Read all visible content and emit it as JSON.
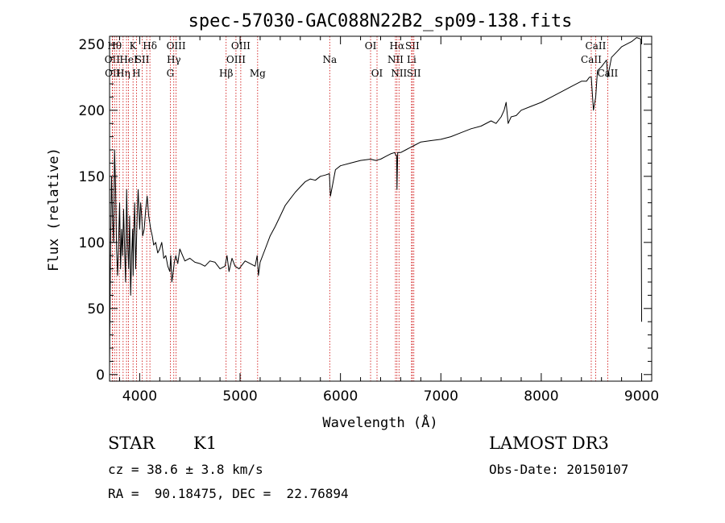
{
  "chart_data": {
    "type": "line",
    "title": "spec-57030-GAC088N22B2_sp09-138.fits",
    "xlabel": "Wavelength (Å)",
    "ylabel": "Flux (relative)",
    "xlim": [
      3700,
      9100
    ],
    "ylim": [
      -5,
      256
    ],
    "xticks": [
      4000,
      5000,
      6000,
      7000,
      8000,
      9000
    ],
    "yticks": [
      0,
      50,
      100,
      150,
      200,
      250
    ],
    "series": [
      {
        "x": [
          3700,
          3710,
          3720,
          3730,
          3740,
          3750,
          3760,
          3770,
          3780,
          3790,
          3800,
          3810,
          3820,
          3830,
          3840,
          3850,
          3860,
          3870,
          3880,
          3890,
          3900,
          3910,
          3920,
          3930,
          3935,
          3940,
          3950,
          3960,
          3968,
          3975,
          3985,
          4000,
          4010,
          4020,
          4030,
          4045,
          4060,
          4075,
          4090,
          4100,
          4110,
          4125,
          4140,
          4160,
          4180,
          4200,
          4220,
          4240,
          4260,
          4280,
          4300,
          4310,
          4320,
          4330,
          4345,
          4360,
          4380,
          4400,
          4450,
          4500,
          4550,
          4600,
          4650,
          4700,
          4750,
          4800,
          4850,
          4870,
          4890,
          4920,
          4950,
          4990,
          5050,
          5100,
          5150,
          5170,
          5183,
          5200,
          5250,
          5300,
          5350,
          5400,
          5450,
          5500,
          5550,
          5600,
          5650,
          5700,
          5750,
          5800,
          5850,
          5890,
          5900,
          5950,
          6000,
          6100,
          6200,
          6300,
          6350,
          6400,
          6450,
          6500,
          6540,
          6560,
          6563,
          6570,
          6600,
          6650,
          6700,
          6750,
          6800,
          6900,
          7000,
          7100,
          7200,
          7300,
          7400,
          7500,
          7550,
          7600,
          7630,
          7650,
          7670,
          7700,
          7750,
          7800,
          7900,
          8000,
          8100,
          8200,
          8300,
          8400,
          8450,
          8480,
          8498,
          8520,
          8542,
          8560,
          8600,
          8650,
          8662,
          8700,
          8750,
          8800,
          8850,
          8900,
          8950,
          8990,
          9000
        ],
        "values": [
          5,
          95,
          150,
          120,
          100,
          170,
          140,
          95,
          75,
          100,
          130,
          80,
          110,
          90,
          125,
          95,
          70,
          140,
          100,
          80,
          120,
          60,
          90,
          110,
          75,
          105,
          130,
          80,
          100,
          120,
          140,
          110,
          130,
          120,
          105,
          110,
          125,
          135,
          120,
          115,
          110,
          105,
          98,
          100,
          92,
          95,
          100,
          88,
          90,
          82,
          78,
          90,
          70,
          75,
          85,
          90,
          84,
          95,
          86,
          88,
          85,
          84,
          82,
          86,
          85,
          80,
          82,
          90,
          78,
          88,
          82,
          80,
          86,
          84,
          82,
          90,
          75,
          85,
          95,
          105,
          112,
          120,
          128,
          133,
          138,
          142,
          146,
          148,
          147,
          150,
          151,
          152,
          135,
          155,
          158,
          160,
          162,
          163,
          162,
          163,
          165,
          167,
          168,
          165,
          140,
          168,
          168,
          170,
          172,
          174,
          176,
          177,
          178,
          180,
          183,
          186,
          188,
          192,
          190,
          195,
          200,
          206,
          190,
          195,
          196,
          200,
          203,
          206,
          210,
          214,
          218,
          222,
          222,
          225,
          225,
          200,
          210,
          230,
          233,
          238,
          225,
          240,
          244,
          248,
          250,
          252,
          255,
          254,
          40
        ]
      }
    ],
    "line_marks": [
      {
        "w": 3727,
        "label": "OII",
        "row": 2
      },
      {
        "w": 3730,
        "label": "OII",
        "row": 3
      },
      {
        "w": 3750,
        "label": "Hθ",
        "row": 1
      },
      {
        "w": 3771,
        "label": "",
        "row": 0
      },
      {
        "w": 3798,
        "label": "",
        "row": 0
      },
      {
        "w": 3835,
        "label": "Hη",
        "row": 3
      },
      {
        "w": 3869,
        "label": "",
        "row": 0
      },
      {
        "w": 3889,
        "label": "HeI",
        "row": 2
      },
      {
        "w": 3934,
        "label": "K",
        "row": 1
      },
      {
        "w": 3968,
        "label": "H",
        "row": 3
      },
      {
        "w": 4026,
        "label": "SII",
        "row": 2
      },
      {
        "w": 4070,
        "label": "",
        "row": 0
      },
      {
        "w": 4102,
        "label": "Hδ",
        "row": 1
      },
      {
        "w": 4305,
        "label": "G",
        "row": 3
      },
      {
        "w": 4340,
        "label": "Hγ",
        "row": 2
      },
      {
        "w": 4363,
        "label": "OIII",
        "row": 1
      },
      {
        "w": 4861,
        "label": "Hβ",
        "row": 3
      },
      {
        "w": 4959,
        "label": "OIII",
        "row": 2
      },
      {
        "w": 5007,
        "label": "OIII",
        "row": 1
      },
      {
        "w": 5175,
        "label": "Mg",
        "row": 3
      },
      {
        "w": 5893,
        "label": "Na",
        "row": 2
      },
      {
        "w": 6300,
        "label": "OI",
        "row": 1
      },
      {
        "w": 6364,
        "label": "OI",
        "row": 3
      },
      {
        "w": 6548,
        "label": "NII",
        "row": 2
      },
      {
        "w": 6563,
        "label": "Hα",
        "row": 1
      },
      {
        "w": 6583,
        "label": "NII",
        "row": 3
      },
      {
        "w": 6708,
        "label": "Li",
        "row": 2
      },
      {
        "w": 6716,
        "label": "SII",
        "row": 1
      },
      {
        "w": 6731,
        "label": "SII",
        "row": 3
      },
      {
        "w": 8498,
        "label": "CaII",
        "row": 2
      },
      {
        "w": 8542,
        "label": "CaII",
        "row": 1
      },
      {
        "w": 8662,
        "label": "CaII",
        "row": 3
      }
    ]
  },
  "info": {
    "object_class": "STAR",
    "subclass": "K1",
    "survey": "LAMOST DR3",
    "cz": "cz = 38.6 ± 3.8 km/s",
    "obs_date": "Obs-Date: 20150107",
    "coords": "RA =  90.18475, DEC =  22.76894"
  },
  "colors": {
    "line": "#000000",
    "marker": "#cc0000",
    "axis": "#000000"
  }
}
